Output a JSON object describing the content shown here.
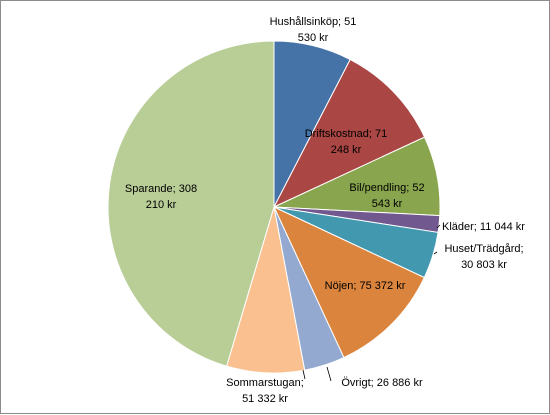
{
  "chart_data": {
    "type": "pie",
    "title": "",
    "legend": "none",
    "slices": [
      {
        "label": "Hushållsinköp",
        "value": 51530,
        "color": "#4572A7",
        "text": [
          "Hushållsinköp; 51",
          "530 kr"
        ]
      },
      {
        "label": "Driftskostnad",
        "value": 71248,
        "color": "#AA4643",
        "text": [
          "Driftskostnad; 71",
          "248 kr"
        ]
      },
      {
        "label": "Bil/pendling",
        "value": 52543,
        "color": "#89A54E",
        "text": [
          "Bil/pendling; 52",
          "543 kr"
        ]
      },
      {
        "label": "Kläder",
        "value": 11044,
        "color": "#71588F",
        "text": [
          "Kläder; 11 044 kr"
        ]
      },
      {
        "label": "Huset/Trädgård",
        "value": 30803,
        "color": "#4198AF",
        "text": [
          "Huset/Trädgård;",
          "30 803 kr"
        ]
      },
      {
        "label": "Nöjen",
        "value": 75372,
        "color": "#DB843D",
        "text": [
          "Nöjen; 75 372 kr"
        ]
      },
      {
        "label": "Övrigt",
        "value": 26886,
        "color": "#93A9CF",
        "text": [
          "Övrigt; 26 886 kr"
        ]
      },
      {
        "label": "Sommarstugan",
        "value": 51332,
        "color": "#FAC090",
        "text": [
          "Sommarstugan;",
          "51 332 kr"
        ]
      },
      {
        "label": "Sparande",
        "value": 308210,
        "color": "#B9CD96",
        "text": [
          "Sparande; 308",
          "210 kr"
        ]
      }
    ]
  }
}
